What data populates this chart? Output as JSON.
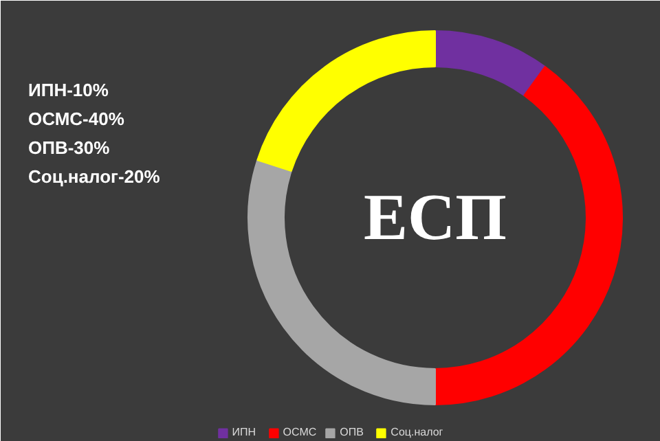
{
  "chart_data": {
    "type": "donut",
    "title": "ЕСП",
    "categories": [
      "ИПН",
      "ОСМС",
      "ОПВ",
      "Соц.налог"
    ],
    "values": [
      10,
      40,
      30,
      20
    ],
    "colors": [
      "#7030a0",
      "#ff0000",
      "#a6a6a6",
      "#ffff00"
    ],
    "annotations": [
      "ИПН-10%",
      "ОСМС-40%",
      "ОПВ-30%",
      "Соц.налог-20%"
    ],
    "legend": "bottom"
  }
}
